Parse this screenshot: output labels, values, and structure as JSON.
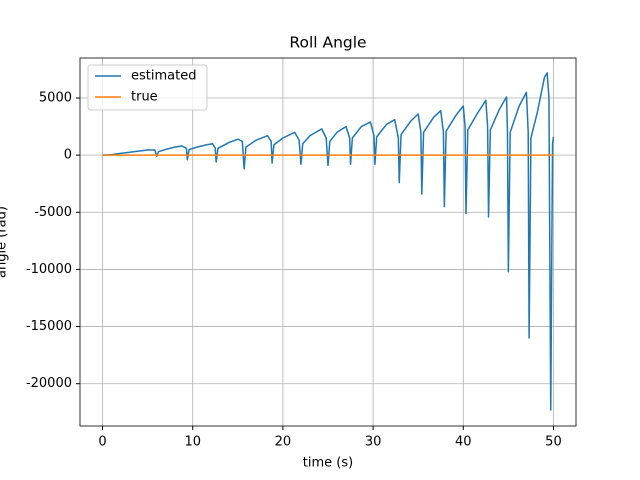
{
  "chart_data": {
    "type": "line",
    "title": "Roll Angle",
    "xlabel": "time (s)",
    "ylabel": "angle (rad)",
    "xlim": [
      -2.5,
      52.5
    ],
    "ylim": [
      -23700,
      8500
    ],
    "xticks": [
      0,
      10,
      20,
      30,
      40,
      50
    ],
    "yticks": [
      -20000,
      -15000,
      -10000,
      -5000,
      0,
      5000
    ],
    "grid": true,
    "legend": "upper left",
    "series": [
      {
        "name": "estimated",
        "color": "#1f77b4",
        "x": [
          0,
          1,
          2,
          3,
          4,
          5,
          5.8,
          6,
          6.2,
          7,
          8,
          8.8,
          9.3,
          9.4,
          9.6,
          10.5,
          11.5,
          12.2,
          12.5,
          12.6,
          12.8,
          14,
          15,
          15.5,
          15.7,
          15.9,
          17,
          18.3,
          18.7,
          18.8,
          19,
          20,
          21.3,
          21.8,
          22,
          22.2,
          23,
          24.3,
          24.8,
          25,
          25.2,
          26,
          27,
          27.4,
          27.5,
          27.7,
          28.7,
          29.7,
          30.1,
          30.2,
          30.4,
          31.5,
          32.4,
          32.8,
          32.9,
          33.1,
          34.2,
          35,
          35.3,
          35.4,
          35.6,
          36.7,
          37.5,
          37.8,
          37.9,
          38.1,
          39.2,
          40,
          40.2,
          40.3,
          40.5,
          41.6,
          42.5,
          42.7,
          42.8,
          43,
          44,
          44.8,
          44.9,
          45,
          45.2,
          46.2,
          47,
          47.2,
          47.3,
          47.5,
          48.2,
          49,
          49.3,
          49.5,
          49.7,
          49.9,
          50
        ],
        "values": [
          0,
          50,
          150,
          250,
          350,
          450,
          450,
          -100,
          300,
          500,
          700,
          800,
          600,
          -400,
          500,
          700,
          900,
          1000,
          600,
          -600,
          600,
          1100,
          1400,
          1200,
          -1200,
          700,
          1300,
          1700,
          1200,
          -700,
          900,
          1500,
          2000,
          1300,
          -800,
          1000,
          1700,
          2300,
          1500,
          -900,
          1200,
          2000,
          2500,
          1500,
          -800,
          1500,
          2500,
          2900,
          1700,
          -800,
          1600,
          2700,
          3100,
          1500,
          -2400,
          1800,
          3000,
          3600,
          2000,
          -3400,
          2000,
          3300,
          3900,
          2000,
          -4500,
          2100,
          3500,
          4300,
          2500,
          -5100,
          2200,
          3700,
          4800,
          2500,
          -5400,
          2200,
          4000,
          5100,
          2000,
          -10200,
          2000,
          4300,
          5500,
          2000,
          -16000,
          1500,
          3700,
          6800,
          7200,
          5000,
          -22300,
          1000,
          1600
        ]
      },
      {
        "name": "true",
        "color": "#ff7f0e",
        "x": [
          0,
          50
        ],
        "values": [
          0,
          0
        ]
      }
    ]
  }
}
